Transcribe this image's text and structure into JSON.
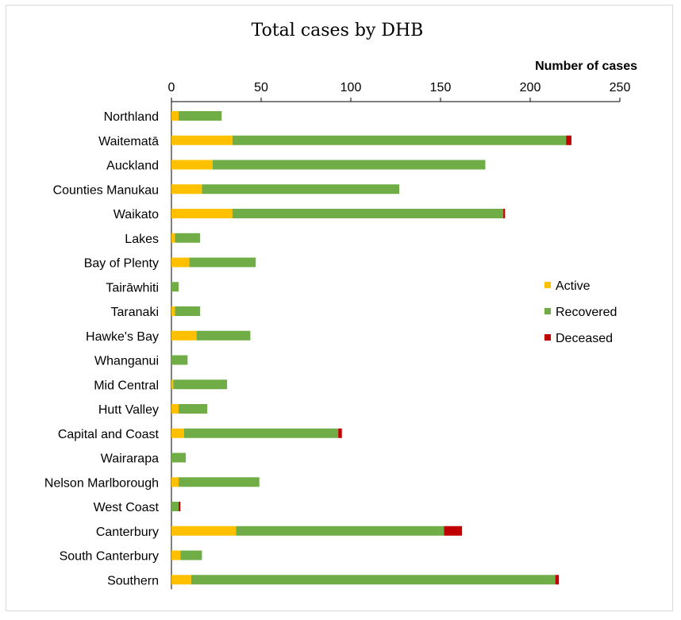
{
  "chart_data": {
    "type": "bar",
    "orientation": "horizontal",
    "stacked": true,
    "title": "Total cases by DHB",
    "xlabel": "Number of cases",
    "xlim": [
      0,
      250
    ],
    "xticks": [
      0,
      50,
      100,
      150,
      200,
      250
    ],
    "x_axis_position": "top",
    "grid": false,
    "legend_position": "right",
    "categories": [
      "Northland",
      "Waitematā",
      "Auckland",
      "Counties Manukau",
      "Waikato",
      "Lakes",
      "Bay of Plenty",
      "Tairāwhiti",
      "Taranaki",
      "Hawke's Bay",
      "Whanganui",
      "Mid Central",
      "Hutt Valley",
      "Capital and Coast",
      "Wairarapa",
      "Nelson Marlborough",
      "West Coast",
      "Canterbury",
      "South Canterbury",
      "Southern"
    ],
    "series": [
      {
        "name": "Active",
        "color": "#FFC000",
        "values": [
          4,
          34,
          23,
          17,
          34,
          2,
          10,
          0,
          2,
          14,
          0,
          1,
          4,
          7,
          0,
          4,
          0,
          36,
          5,
          11
        ]
      },
      {
        "name": "Recovered",
        "color": "#70AD47",
        "values": [
          24,
          186,
          152,
          110,
          151,
          14,
          37,
          4,
          14,
          30,
          9,
          30,
          16,
          86,
          8,
          45,
          4,
          116,
          12,
          203
        ]
      },
      {
        "name": "Deceased",
        "color": "#C00000",
        "values": [
          0,
          3,
          0,
          0,
          1,
          0,
          0,
          0,
          0,
          0,
          0,
          0,
          0,
          2,
          0,
          0,
          1,
          10,
          0,
          2
        ]
      }
    ]
  }
}
